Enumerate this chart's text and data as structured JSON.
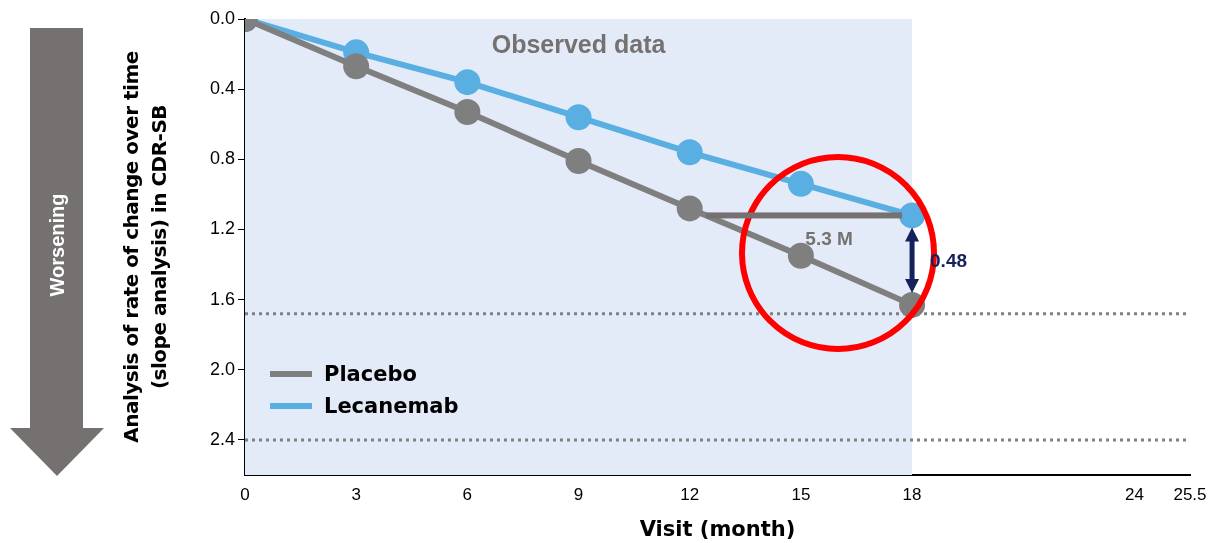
{
  "chart_data": {
    "type": "line",
    "xlabel": "Visit (month)",
    "ylabel": "Analysis of rate of change over time (slope analysis) in CDR-SB",
    "x": [
      0,
      3,
      6,
      9,
      12,
      15,
      18
    ],
    "series": [
      {
        "name": "Placebo",
        "color": "#7f7f7f",
        "values": [
          0,
          0.27,
          0.53,
          0.81,
          1.08,
          1.35,
          1.63
        ]
      },
      {
        "name": "Lecanemab",
        "color": "#5aafe2",
        "values": [
          0,
          0.19,
          0.36,
          0.56,
          0.76,
          0.94,
          1.12
        ]
      }
    ],
    "xlim": [
      0,
      25.5
    ],
    "xticks": [
      0,
      3,
      6,
      9,
      12,
      15,
      18,
      24,
      25.5
    ],
    "ylim": [
      2.6,
      0
    ],
    "yticks": [
      {
        "value": 0,
        "label": "0.0"
      },
      {
        "value": 0.4,
        "label": "0.4"
      },
      {
        "value": 0.8,
        "label": "0.8"
      },
      {
        "value": 1.2,
        "label": "1.2"
      },
      {
        "value": 1.6,
        "label": "1.6"
      },
      {
        "value": 2,
        "label": "2.0"
      },
      {
        "value": 2.4,
        "label": "2.4"
      }
    ],
    "bands": [
      {
        "axis": "x",
        "from": 0,
        "to": 18,
        "label": "Observed data",
        "color": "#e4ebf8"
      }
    ],
    "ref_lines": [
      {
        "axis": "y",
        "value": 1.68,
        "line_style": "dotted",
        "color": "#808080"
      },
      {
        "axis": "y",
        "value": 2.4,
        "line_style": "dotted",
        "color": "#808080"
      }
    ],
    "annotations": [
      "Worsening",
      "5.3 M",
      {
        "text": "0.48",
        "x": 18,
        "y": 1.38
      }
    ],
    "legend": "bottom left",
    "marker": "circle",
    "line_style": "solid",
    "grid": false
  }
}
